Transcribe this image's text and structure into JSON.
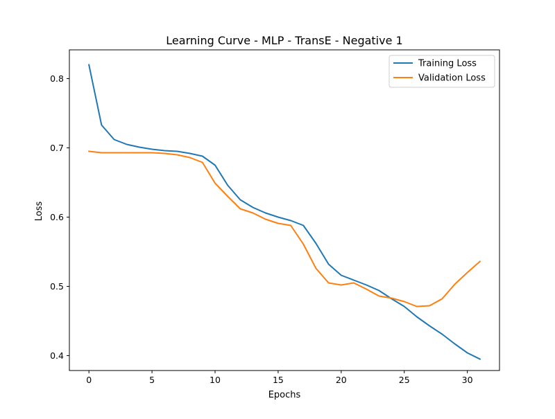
{
  "chart_data": {
    "type": "line",
    "title": "Learning Curve - MLP - TransE - Negative 1",
    "xlabel": "Epochs",
    "ylabel": "Loss",
    "xlim": [
      -1.55,
      32.55
    ],
    "ylim": [
      0.3785,
      0.8415
    ],
    "xticks": [
      0,
      5,
      10,
      15,
      20,
      25,
      30
    ],
    "yticks": [
      0.4,
      0.5,
      0.6,
      0.7,
      0.8
    ],
    "grid": false,
    "legend_position": "top-right",
    "x": [
      0,
      1,
      2,
      3,
      4,
      5,
      6,
      7,
      8,
      9,
      10,
      11,
      12,
      13,
      14,
      15,
      16,
      17,
      18,
      19,
      20,
      21,
      22,
      23,
      24,
      25,
      26,
      27,
      28,
      29,
      30,
      31
    ],
    "series": [
      {
        "name": "Training Loss",
        "color": "#1f77b4",
        "values": [
          0.82,
          0.733,
          0.712,
          0.705,
          0.701,
          0.698,
          0.696,
          0.695,
          0.692,
          0.688,
          0.675,
          0.646,
          0.625,
          0.614,
          0.606,
          0.6,
          0.595,
          0.588,
          0.562,
          0.532,
          0.516,
          0.509,
          0.502,
          0.494,
          0.482,
          0.471,
          0.456,
          0.443,
          0.431,
          0.417,
          0.404,
          0.395
        ]
      },
      {
        "name": "Validation Loss",
        "color": "#ff7f0e",
        "values": [
          0.695,
          0.693,
          0.693,
          0.693,
          0.693,
          0.693,
          0.692,
          0.69,
          0.686,
          0.679,
          0.649,
          0.63,
          0.612,
          0.606,
          0.597,
          0.591,
          0.588,
          0.561,
          0.526,
          0.505,
          0.502,
          0.505,
          0.496,
          0.486,
          0.483,
          0.478,
          0.471,
          0.472,
          0.482,
          0.503,
          0.52,
          0.536
        ]
      }
    ]
  }
}
